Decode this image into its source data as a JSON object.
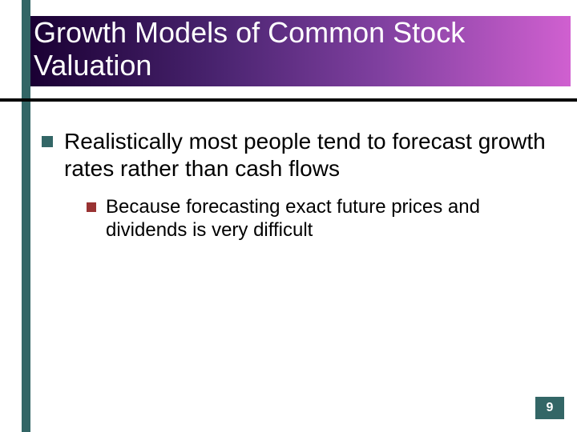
{
  "colors": {
    "accent_vertical_bar": "#336666",
    "title_gradient_start": "#1a0033",
    "title_gradient_end": "#d060d0",
    "underline": "#000000",
    "bullet_main": "#336666",
    "bullet_sub": "#993333",
    "page_badge_bg": "#336666",
    "page_badge_text": "#ffffff",
    "body_text": "#000000",
    "background": "#ffffff"
  },
  "typography": {
    "title_fontsize": 36,
    "main_bullet_fontsize": 28,
    "sub_bullet_fontsize": 24,
    "page_number_fontsize": 16
  },
  "slide": {
    "title": "Growth Models of Common Stock Valuation",
    "bullets": [
      {
        "text": "Realistically most people tend to forecast growth rates rather than cash flows",
        "sub": [
          {
            "text": "Because forecasting exact future prices and dividends is very difficult"
          }
        ]
      }
    ],
    "page_number": "9"
  }
}
